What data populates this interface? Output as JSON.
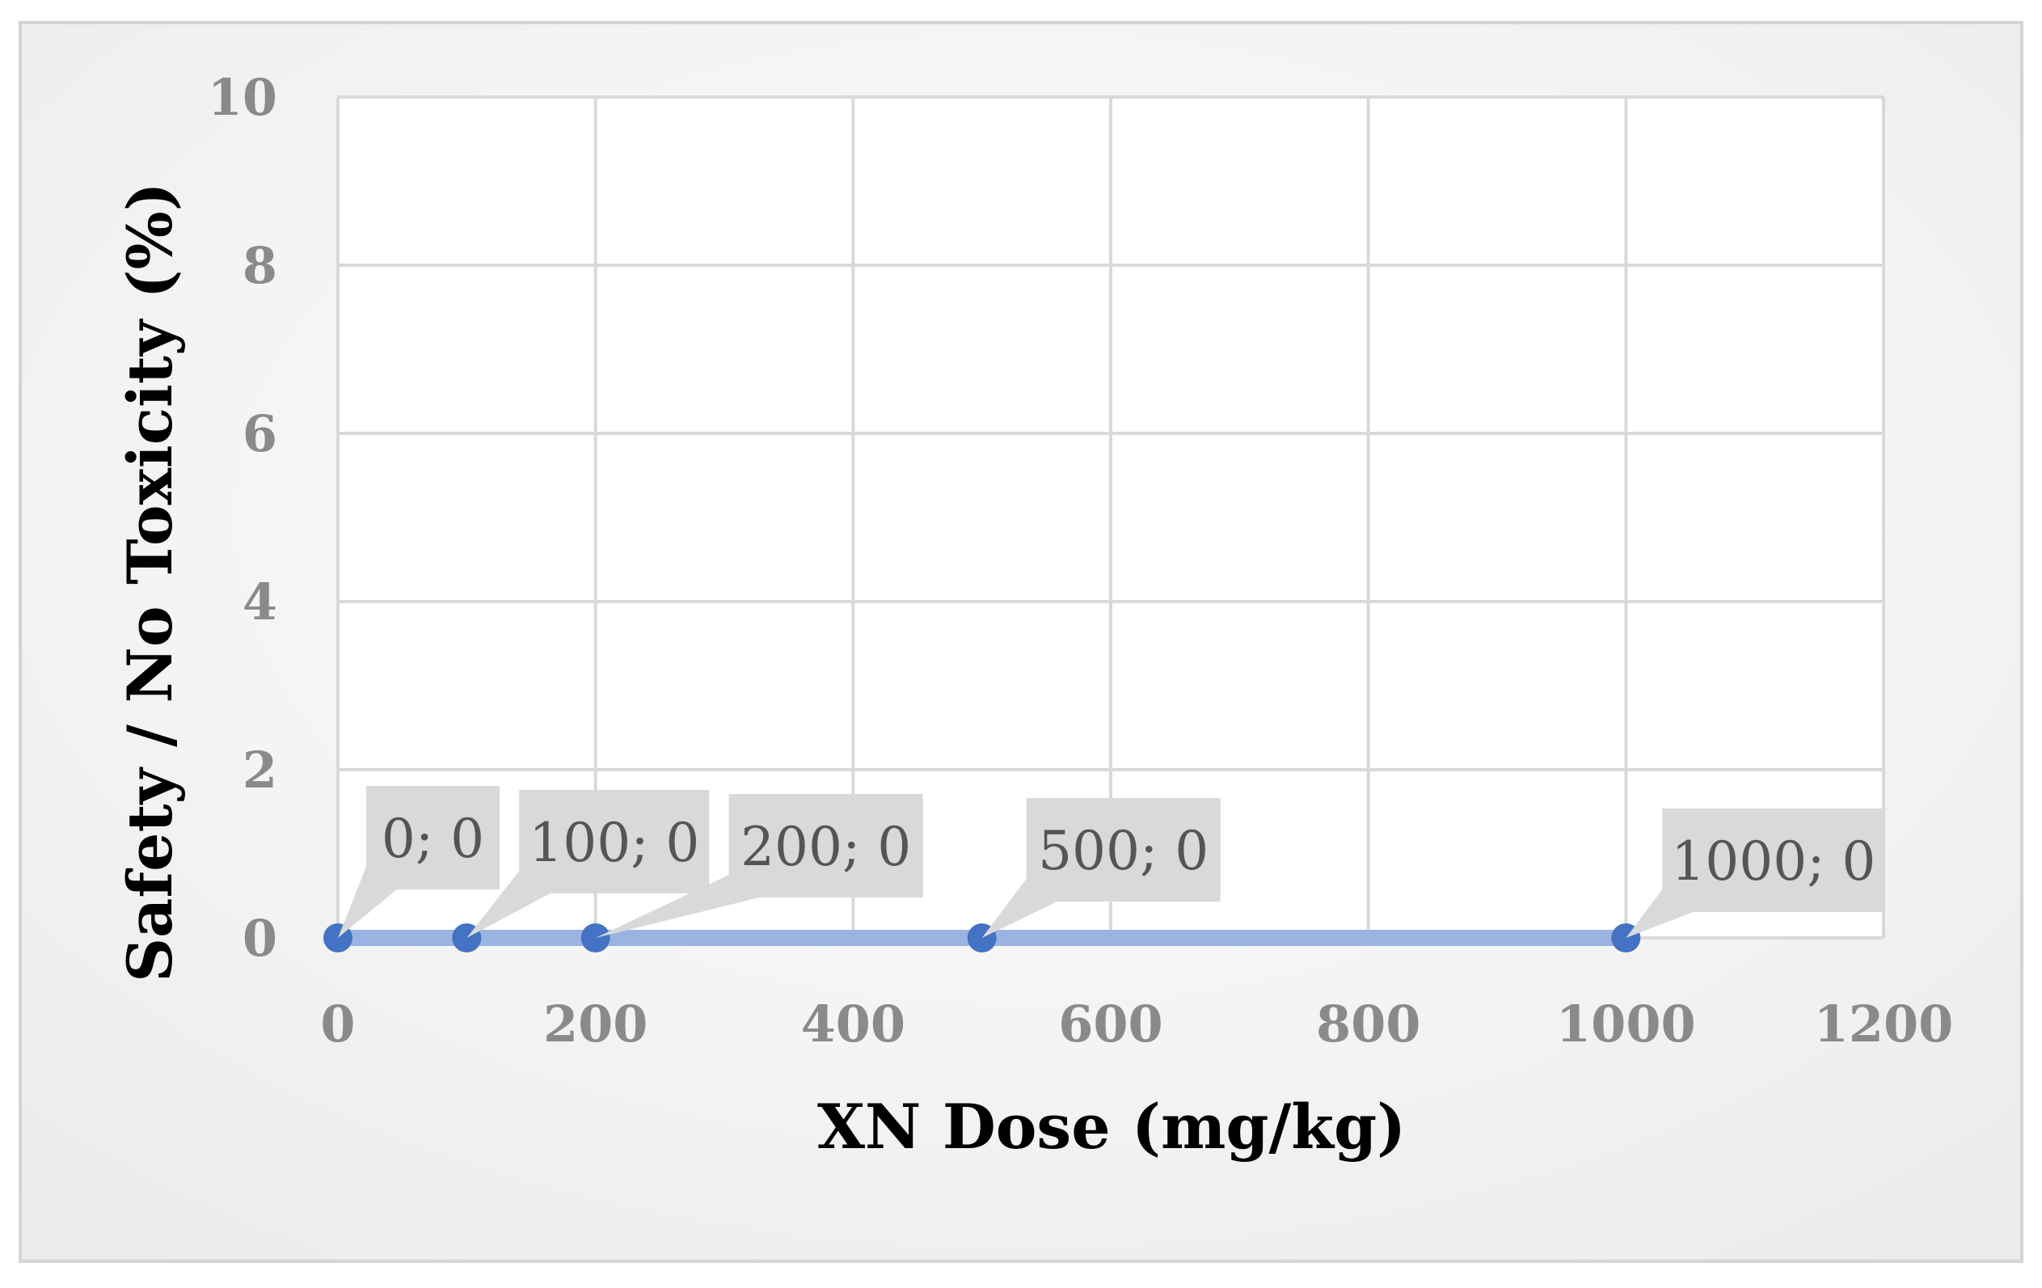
{
  "chart_data": {
    "type": "scatter",
    "title": "",
    "xlabel": "XN Dose (mg/kg)",
    "ylabel": "Safety / No Toxicity (%)",
    "xlim": [
      0,
      1200
    ],
    "ylim": [
      0,
      10
    ],
    "x_ticks": [
      0,
      200,
      400,
      600,
      800,
      1000,
      1200
    ],
    "y_ticks": [
      0,
      2,
      4,
      6,
      8,
      10
    ],
    "x_tick_labels": [
      "0",
      "200",
      "400",
      "600",
      "800",
      "1000",
      "1200"
    ],
    "y_tick_labels": [
      "0",
      "2",
      "4",
      "6",
      "8",
      "10"
    ],
    "grid": true,
    "legend": "none",
    "series": [
      {
        "x": [
          0,
          100,
          200,
          500,
          1000
        ],
        "y": [
          0,
          0,
          0,
          0,
          0
        ],
        "labels": [
          "0; 0",
          "100; 0",
          "200; 0",
          "500; 0",
          "1000; 0"
        ]
      }
    ],
    "colors": {
      "marker": "#4472C4",
      "line": "#9BB3E0",
      "grid": "#D9D9D9",
      "label_box": "#D9D9D9",
      "background_outer": "#EEEEEE",
      "background_inner": "#FFFFFF"
    }
  }
}
